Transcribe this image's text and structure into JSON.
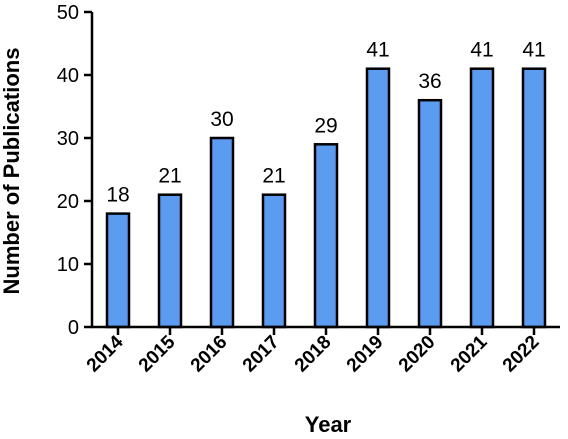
{
  "chart_data": {
    "type": "bar",
    "title": "",
    "xlabel": "Year",
    "ylabel": "Number of Publications",
    "categories": [
      "2014",
      "2015",
      "2016",
      "2017",
      "2018",
      "2019",
      "2020",
      "2021",
      "2022"
    ],
    "values": [
      18,
      21,
      30,
      21,
      29,
      41,
      36,
      41,
      41
    ],
    "data_labels": [
      "18",
      "21",
      "30",
      "21",
      "29",
      "41",
      "36",
      "41",
      "41"
    ],
    "ylim": [
      0,
      50
    ],
    "yticks": [
      "0",
      "10",
      "20",
      "30",
      "40",
      "50"
    ],
    "grid": false,
    "legend": "none",
    "bar_color": "#5B9BF0",
    "bar_edge_color": "#000000"
  }
}
